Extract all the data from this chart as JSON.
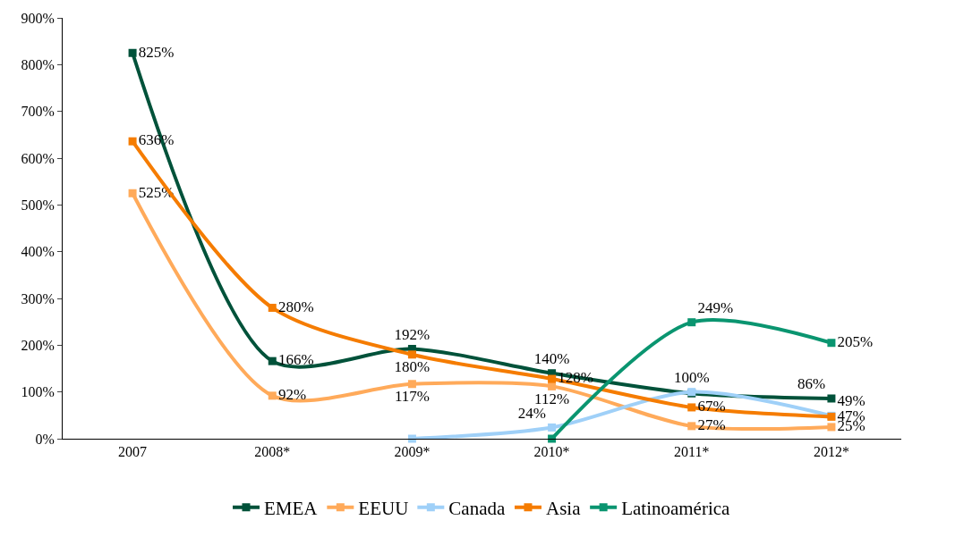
{
  "chart_data": {
    "type": "line",
    "categories": [
      "2007",
      "2008*",
      "2009*",
      "2010*",
      "2011*",
      "2012*"
    ],
    "ylim": [
      0,
      900
    ],
    "yticks": [
      {
        "value": 0,
        "label": "0%"
      },
      {
        "value": 100,
        "label": "100%"
      },
      {
        "value": 200,
        "label": "200%"
      },
      {
        "value": 300,
        "label": "300%"
      },
      {
        "value": 400,
        "label": "400%"
      },
      {
        "value": 500,
        "label": "500%"
      },
      {
        "value": 600,
        "label": "600%"
      },
      {
        "value": 700,
        "label": "700%"
      },
      {
        "value": 800,
        "label": "800%"
      },
      {
        "value": 900,
        "label": "900%"
      }
    ],
    "legend": "bottom",
    "marker": "square",
    "line_style": "solid",
    "series": [
      {
        "name": "EMEA",
        "color": "#00523a",
        "values": [
          825,
          166,
          192,
          140,
          97,
          86
        ],
        "value_labels": [
          "825%",
          "166%",
          "192%",
          "140%",
          null,
          "86%"
        ]
      },
      {
        "name": "EEUU",
        "color": "#ffaa5a",
        "values": [
          525,
          92,
          117,
          112,
          27,
          25
        ],
        "value_labels": [
          "525%",
          "92%",
          "117%",
          "112%",
          "27%",
          "25%"
        ]
      },
      {
        "name": "Canada",
        "color": "#9fd0f8",
        "values": [
          null,
          null,
          0,
          24,
          100,
          49
        ],
        "value_labels": [
          null,
          null,
          null,
          "24%",
          "100%",
          "49%"
        ]
      },
      {
        "name": "Asia",
        "color": "#f57c00",
        "values": [
          636,
          280,
          180,
          128,
          67,
          47
        ],
        "value_labels": [
          "636%",
          "280%",
          "180%",
          "128%",
          "67%",
          "47%"
        ]
      },
      {
        "name": "Latinoamérica",
        "color": "#0a9570",
        "values": [
          null,
          null,
          null,
          0,
          249,
          205
        ],
        "value_labels": [
          null,
          null,
          null,
          null,
          "249%",
          "205%"
        ]
      }
    ]
  }
}
